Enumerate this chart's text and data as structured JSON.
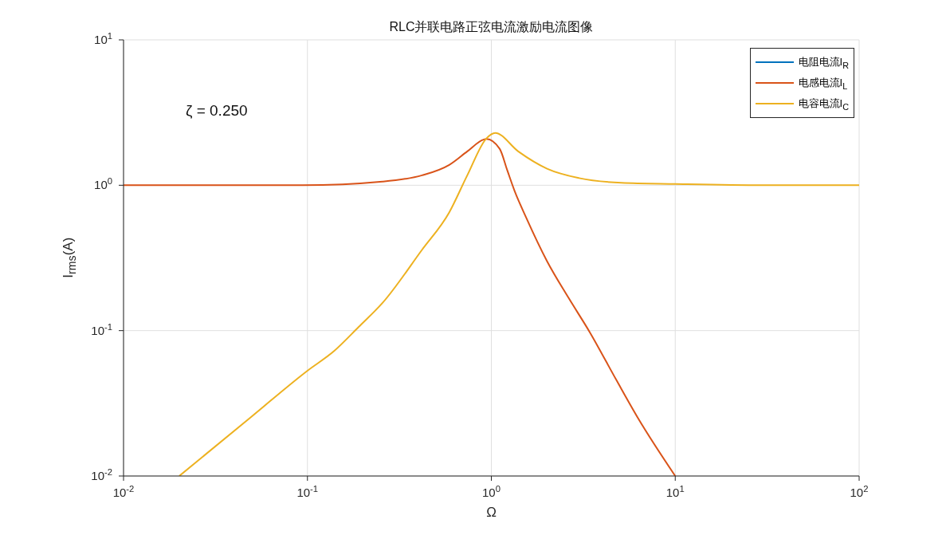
{
  "chart_data": {
    "type": "line",
    "title": "RLC并联电路正弦电流激励电流图像",
    "xlabel": "Ω",
    "ylabel": "I$_{rms}$(A)",
    "annotations": [
      "ζ = 0.250"
    ],
    "log": "xy",
    "grid": true,
    "legend": "top right",
    "marker": "none",
    "line_style": "solid",
    "xlim": [
      0.01,
      100
    ],
    "ylim": [
      0.01,
      10
    ],
    "xticks": [
      {
        "value": 0.01,
        "label": "10$^{-2}$"
      },
      {
        "value": 0.1,
        "label": "10$^{-1}$"
      },
      {
        "value": 1,
        "label": "10$^{0}$"
      },
      {
        "value": 10,
        "label": "10$^{1}$"
      },
      {
        "value": 100,
        "label": "10$^{2}$"
      }
    ],
    "yticks": [
      {
        "value": 0.01,
        "label": "10$^{-2}$"
      },
      {
        "value": 0.1,
        "label": "10$^{-1}$"
      },
      {
        "value": 1,
        "label": "10$^{0}$"
      },
      {
        "value": 10,
        "label": "10$^{1}$"
      }
    ],
    "series": [
      {
        "name": "电阻电流I$_{R}$",
        "color": "#0072bd"
      },
      {
        "name": "电感电流I$_{L}$",
        "color": "#d95319",
        "x": [
          0.01,
          0.05,
          0.094,
          0.256,
          0.42,
          0.59,
          0.74,
          0.907,
          0.94,
          1.11,
          1.22,
          1.34,
          1.55,
          2.01,
          2.63,
          3.43,
          4.79,
          6.24,
          10
        ],
        "values": [
          1.0,
          1.0,
          1.0,
          1.06,
          1.17,
          1.38,
          1.71,
          2.06,
          2.08,
          1.78,
          1.27,
          0.91,
          0.596,
          0.3,
          0.168,
          0.0975,
          0.0456,
          0.0253,
          0.01
        ]
      },
      {
        "name": "电容电流I$_{C}$",
        "color": "#edb120",
        "x": [
          0.0201,
          0.05,
          0.1,
          0.14,
          0.19,
          0.256,
          0.42,
          0.59,
          0.74,
          0.94,
          1.05,
          1.4,
          2.01,
          3.0,
          5.1,
          10,
          30,
          100
        ],
        "values": [
          0.01,
          0.0258,
          0.053,
          0.0726,
          0.106,
          0.155,
          0.36,
          0.65,
          1.17,
          2.1,
          2.29,
          1.71,
          1.3,
          1.12,
          1.04,
          1.02,
          1.0,
          1.0
        ]
      }
    ]
  }
}
